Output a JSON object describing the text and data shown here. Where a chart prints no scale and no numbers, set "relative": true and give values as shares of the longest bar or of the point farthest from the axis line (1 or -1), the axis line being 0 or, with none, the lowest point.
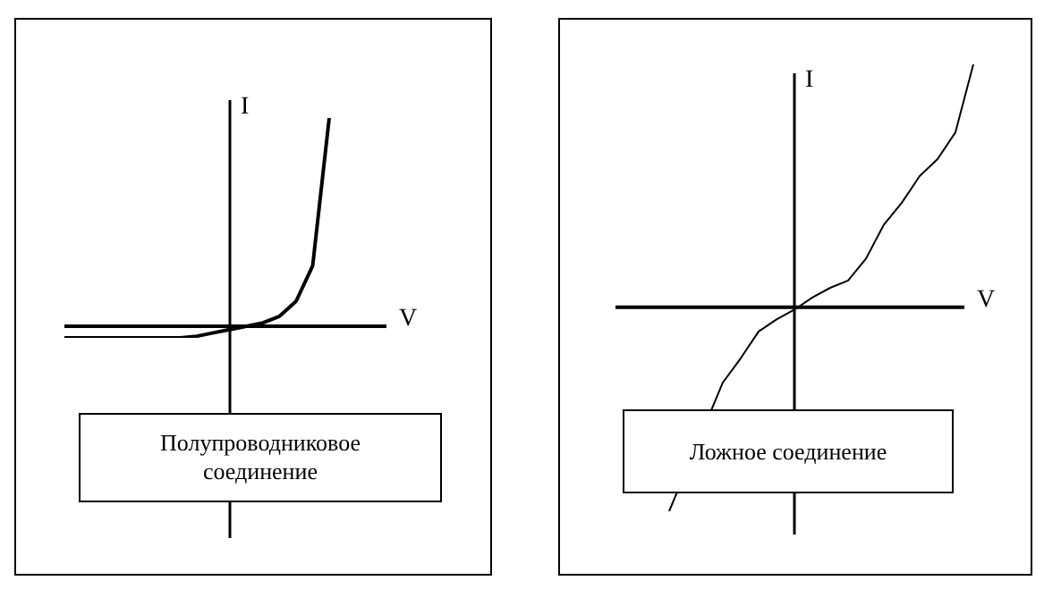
{
  "chart_data": [
    {
      "type": "line",
      "relative": true,
      "marker": "none",
      "xlabel": "V",
      "ylabel": "I",
      "color": "#000000",
      "categories": [
        null,
        null,
        null,
        null,
        null,
        null,
        null,
        null,
        null,
        null,
        null,
        null,
        null,
        null,
        null,
        null,
        null,
        null,
        null,
        null,
        null
      ],
      "values": [
        -0.056,
        -0.056,
        -0.056,
        -0.056,
        -0.056,
        -0.056,
        -0.056,
        -0.056,
        -0.048,
        -0.032,
        -0.016,
        0,
        0.016,
        0.048,
        0.12,
        0.29,
        1.0,
        null,
        null,
        null,
        null
      ],
      "annotations": [
        "Полупроводниковое соединение"
      ]
    },
    {
      "type": "line",
      "relative": true,
      "marker": "none",
      "xlabel": "V",
      "ylabel": "I",
      "color": "#000000",
      "categories": [
        null,
        null,
        null,
        null,
        null,
        null,
        null,
        null,
        null,
        null,
        null,
        null,
        null,
        null,
        null,
        null,
        null,
        null,
        null,
        null,
        null
      ],
      "values": [
        null,
        null,
        null,
        -0.84,
        null,
        null,
        -0.31,
        -0.21,
        -0.1,
        -0.05,
        -0.01,
        0.04,
        0.08,
        0.11,
        0.2,
        0.34,
        0.43,
        0.54,
        0.61,
        0.72,
        1.0
      ],
      "annotations": [
        "Ложное соединение"
      ]
    }
  ]
}
